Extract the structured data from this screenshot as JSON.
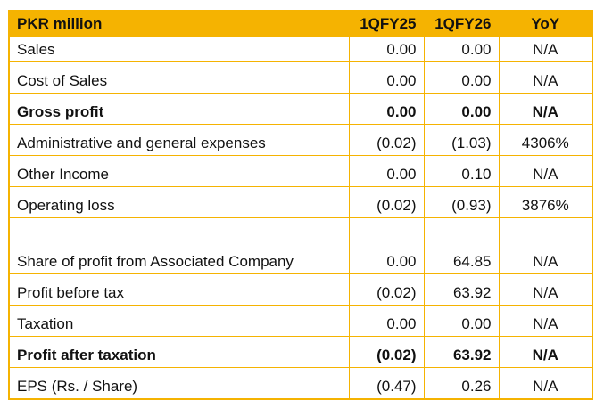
{
  "table": {
    "headers": [
      "PKR million",
      "1QFY25",
      "1QFY26",
      "YoY"
    ],
    "rows": [
      {
        "label": "Sales",
        "a": "0.00",
        "b": "0.00",
        "yoy": "N/A",
        "bold": false
      },
      {
        "label": "Cost of Sales",
        "a": "0.00",
        "b": "0.00",
        "yoy": "N/A",
        "bold": false
      },
      {
        "label": "Gross profit",
        "a": "0.00",
        "b": "0.00",
        "yoy": "N/A",
        "bold": true
      },
      {
        "label": "Administrative and general expenses",
        "a": "(0.02)",
        "b": "(1.03)",
        "yoy": "4306%",
        "bold": false
      },
      {
        "label": "Other Income",
        "a": "0.00",
        "b": "0.10",
        "yoy": "N/A",
        "bold": false
      },
      {
        "label": "Operating loss",
        "a": "(0.02)",
        "b": "(0.93)",
        "yoy": "3876%",
        "bold": false
      },
      {
        "label": "Share of profit from Associated Company",
        "a": "0.00",
        "b": "64.85",
        "yoy": "N/A",
        "bold": false
      },
      {
        "label": "Profit before tax",
        "a": "(0.02)",
        "b": "63.92",
        "yoy": "N/A",
        "bold": false
      },
      {
        "label": "Taxation",
        "a": "0.00",
        "b": "0.00",
        "yoy": "N/A",
        "bold": false
      },
      {
        "label": "Profit after taxation",
        "a": "(0.02)",
        "b": "63.92",
        "yoy": "N/A",
        "bold": true
      },
      {
        "label": "EPS (Rs. / Share)",
        "a": "(0.47)",
        "b": "0.26",
        "yoy": "N/A",
        "bold": false
      }
    ]
  },
  "colors": {
    "accent": "#f5b301",
    "text": "#111111"
  }
}
